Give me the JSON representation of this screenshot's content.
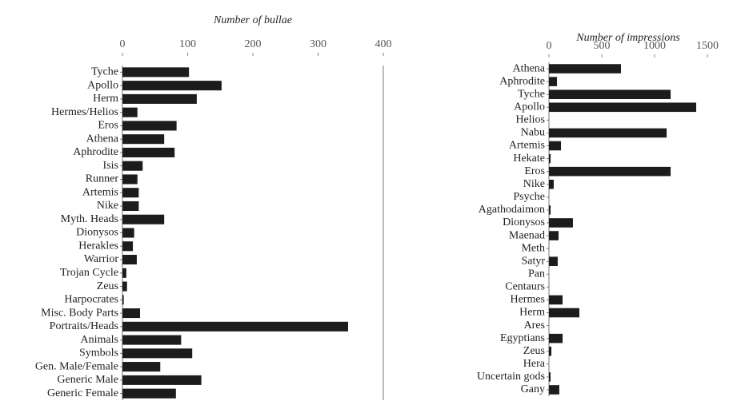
{
  "chart_data": [
    {
      "type": "bar",
      "orientation": "horizontal",
      "title": "Number of bullae",
      "categories": [
        "Tyche",
        "Apollo",
        "Herm",
        "Hermes/Helios",
        "Eros",
        "Athena",
        "Aphrodite",
        "Isis",
        "Runner",
        "Artemis",
        "Nike",
        "Myth. Heads",
        "Dionysos",
        "Herakles",
        "Warrior",
        "Trojan Cycle",
        "Zeus",
        "Harpocrates",
        "Misc. Body Parts",
        "Portraits/Heads",
        "Animals",
        "Symbols",
        "Gen. Male/Female",
        "Generic Male",
        "Generic Female"
      ],
      "values": [
        102,
        152,
        114,
        23,
        83,
        64,
        80,
        31,
        23,
        25,
        25,
        64,
        18,
        16,
        22,
        6,
        7,
        2,
        27,
        346,
        90,
        107,
        58,
        121,
        82
      ],
      "color": "#1c1c1c",
      "xlim": [
        0,
        400
      ],
      "xticks": [
        0,
        100,
        200,
        300,
        400
      ]
    },
    {
      "type": "bar",
      "orientation": "horizontal",
      "title": "Number of impressions",
      "categories": [
        "Athena",
        "Aphrodite",
        "Tyche",
        "Apollo",
        "Helios",
        "Nabu",
        "Artemis",
        "Hekate",
        "Eros",
        "Nike",
        "Psyche",
        "Agathodaimon",
        "Dionysos",
        "Maenad",
        "Meth",
        "Satyr",
        "Pan",
        "Centaurs",
        "Hermes",
        "Herm",
        "Ares",
        "Egyptians",
        "Zeus",
        "Hera",
        "Uncertain gods",
        "Gany"
      ],
      "values": [
        682,
        76,
        1152,
        1394,
        0,
        1114,
        114,
        15,
        1152,
        45,
        0,
        15,
        227,
        91,
        0,
        83,
        0,
        0,
        129,
        288,
        0,
        129,
        23,
        0,
        15,
        98
      ],
      "color": "#1c1c1c",
      "xlim": [
        0,
        1500
      ],
      "xticks": [
        0,
        500,
        1000,
        1500
      ]
    }
  ]
}
